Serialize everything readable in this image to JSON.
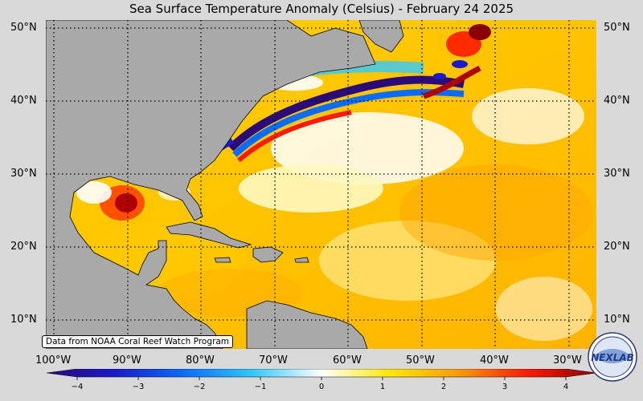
{
  "title": "Sea Surface Temperature Anomaly (Celsius) - February 24 2025",
  "latitudes": [
    "50°N",
    "40°N",
    "30°N",
    "20°N",
    "10°N"
  ],
  "longitudes": [
    "100°W",
    "90°W",
    "80°W",
    "70°W",
    "60°W",
    "50°W",
    "40°W",
    "30°W"
  ],
  "credit": "Data from NOAA Coral Reef Watch Program",
  "colorbar": {
    "ticks": [
      "−4",
      "−3",
      "−2",
      "−1",
      "0",
      "1",
      "2",
      "3",
      "4"
    ],
    "min": -4,
    "max": 4,
    "colors": [
      "#2b0a7a",
      "#1a1acc",
      "#0a6cff",
      "#2fc9ff",
      "#ffffff",
      "#ffe800",
      "#ff9a00",
      "#ff1a00",
      "#8b0000"
    ]
  },
  "logo_text": "NEXLAB",
  "colors": {
    "land": "#a9a9a9",
    "ocean_base": "#ffe13a",
    "background": "#d9d9d9"
  }
}
